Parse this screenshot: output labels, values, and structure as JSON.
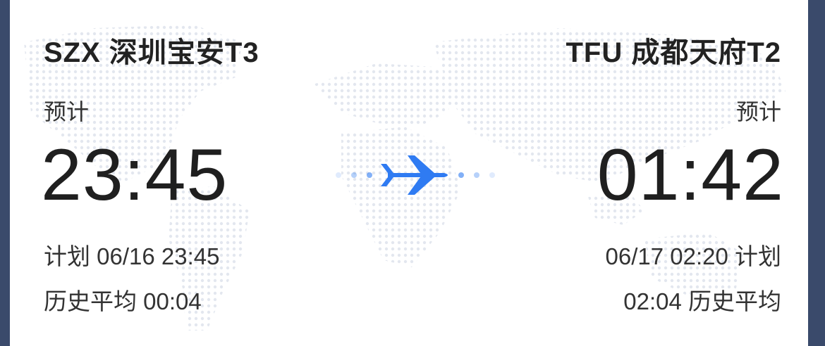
{
  "departure": {
    "airport": "SZX 深圳宝安T3",
    "estimate_label": "预计",
    "estimated_time": "23:45",
    "scheduled": "计划 06/16 23:45",
    "historical": "历史平均 00:04"
  },
  "arrival": {
    "airport": "TFU 成都天府T2",
    "estimate_label": "预计",
    "estimated_time": "01:42",
    "scheduled": "06/17 02:20 计划",
    "historical": "02:04 历史平均"
  },
  "icons": {
    "plane": "airplane-icon"
  },
  "colors": {
    "accent": "#2f7bf2",
    "text": "#222222",
    "frame": "#3a4a6b",
    "map_dots": "#e3e7ef"
  }
}
